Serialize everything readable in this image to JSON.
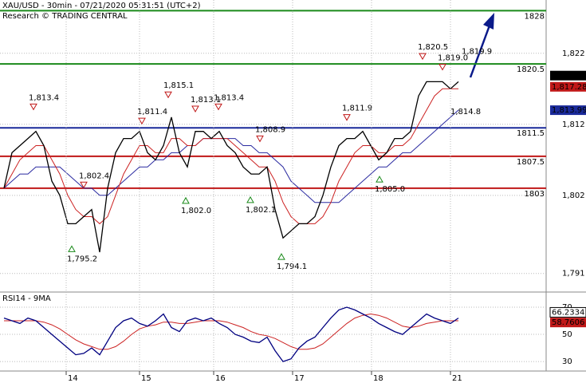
{
  "chart_data": [
    {
      "type": "price",
      "title": "XAU/USD - 30min - 07/21/2020 05:31:51 (UTC+2)",
      "subtitle": "Research © TRADING CENTRAL",
      "x": [
        0,
        1,
        2,
        3,
        4,
        5,
        6,
        7,
        8,
        9,
        10,
        11,
        12,
        13,
        14,
        15,
        16,
        17,
        18,
        19,
        20,
        21,
        22,
        23,
        24,
        25,
        26,
        27,
        28,
        29,
        30,
        31,
        32,
        33,
        34,
        35,
        36,
        37,
        38,
        39,
        40,
        41,
        42,
        43,
        44,
        45,
        46,
        47,
        48,
        49,
        50,
        51,
        52,
        53,
        54,
        55,
        56,
        57
      ],
      "series": [
        {
          "color": "#000000",
          "values": [
            1803,
            1808,
            1809,
            1810,
            1811,
            1809,
            1804,
            1802,
            1798,
            1798,
            1799,
            1800,
            1794,
            1803,
            1808,
            1810,
            1810,
            1811,
            1808,
            1807,
            1809,
            1813,
            1808,
            1806,
            1811,
            1811,
            1810,
            1811,
            1809,
            1808,
            1806,
            1805,
            1805,
            1806,
            1800,
            1796,
            1797,
            1798,
            1798,
            1799,
            1802,
            1806,
            1809,
            1810,
            1810,
            1811,
            1809,
            1807,
            1808,
            1810,
            1810,
            1811,
            1816,
            1818,
            1818,
            1818,
            1817,
            1818
          ]
        },
        {
          "color": "#cc2222",
          "values": [
            1803,
            1805,
            1807,
            1808,
            1809,
            1809,
            1807,
            1805,
            1802,
            1800,
            1799,
            1799,
            1798,
            1799,
            1802,
            1805,
            1807,
            1809,
            1809,
            1808,
            1808,
            1810,
            1810,
            1809,
            1809,
            1810,
            1810,
            1810,
            1810,
            1809,
            1808,
            1807,
            1806,
            1806,
            1804,
            1801,
            1799,
            1798,
            1798,
            1798,
            1799,
            1801,
            1804,
            1806,
            1808,
            1809,
            1809,
            1808,
            1808,
            1809,
            1809,
            1810,
            1812,
            1814,
            1816,
            1817,
            1817,
            1817
          ]
        },
        {
          "color": "#2a2aa0",
          "values": [
            1803,
            1804,
            1805,
            1805,
            1806,
            1806,
            1806,
            1806,
            1805,
            1804,
            1803,
            1803,
            1802,
            1802,
            1803,
            1804,
            1805,
            1806,
            1806,
            1807,
            1807,
            1808,
            1808,
            1809,
            1809,
            1810,
            1810,
            1810,
            1810,
            1810,
            1809,
            1809,
            1808,
            1808,
            1807,
            1806,
            1804,
            1803,
            1802,
            1801,
            1801,
            1801,
            1801,
            1802,
            1803,
            1804,
            1805,
            1806,
            1806,
            1807,
            1808,
            1808,
            1809,
            1810,
            1811,
            1812,
            1813,
            1814
          ]
        }
      ],
      "levels": [
        {
          "value": 1828,
          "color": "#1a8a1a"
        },
        {
          "value": 1820.5,
          "color": "#1a8a1a"
        },
        {
          "value": 1811.5,
          "color": "#1a2a9a"
        },
        {
          "value": 1807.5,
          "color": "#c01818"
        },
        {
          "value": 1803,
          "color": "#c01818"
        }
      ],
      "price_labels": [
        {
          "value": 1818.86,
          "label": "1,818.86",
          "color": "#000000"
        },
        {
          "value": 1817.28,
          "label": "1,817.28",
          "color": "#c01818"
        },
        {
          "value": 1813.99,
          "label": "1,813.99",
          "color": "#1a2a9a"
        }
      ],
      "annotations": [
        {
          "label": "1,813.4",
          "x": 3.7,
          "value": 1813.4,
          "kind": "high"
        },
        {
          "label": "1,795.2",
          "x": 8.5,
          "value": 1795.2,
          "kind": "low"
        },
        {
          "label": "1,802.4",
          "x": 10,
          "value": 1802.4,
          "kind": "high"
        },
        {
          "label": "1,811.4",
          "x": 17.3,
          "value": 1811.4,
          "kind": "high"
        },
        {
          "label": "1,815.1",
          "x": 20.6,
          "value": 1815.1,
          "kind": "high"
        },
        {
          "label": "1,802.0",
          "x": 22.8,
          "value": 1802.0,
          "kind": "low"
        },
        {
          "label": "1,813.1",
          "x": 24,
          "value": 1813.1,
          "kind": "high"
        },
        {
          "label": "1,813.4",
          "x": 26.9,
          "value": 1813.4,
          "kind": "high"
        },
        {
          "label": "1,802.1",
          "x": 30.9,
          "value": 1802.1,
          "kind": "low"
        },
        {
          "label": "1,808.9",
          "x": 32.1,
          "value": 1808.9,
          "kind": "high"
        },
        {
          "label": "1,794.1",
          "x": 34.8,
          "value": 1794.1,
          "kind": "low"
        },
        {
          "label": "1,811.9",
          "x": 43,
          "value": 1811.9,
          "kind": "high"
        },
        {
          "label": "1,805.0",
          "x": 47.1,
          "value": 1805.0,
          "kind": "low"
        },
        {
          "label": "1,820.5",
          "x": 52.5,
          "value": 1820.5,
          "kind": "high"
        },
        {
          "label": "1,819.0",
          "x": 55,
          "value": 1819.0,
          "kind": "high"
        },
        {
          "label": "1,819.9",
          "x": 58,
          "value": 1819.9,
          "kind": "high-text"
        },
        {
          "label": "1,814.8",
          "x": 56.6,
          "value": 1814.8,
          "kind": "text"
        }
      ],
      "xlim": [
        -0.5,
        68
      ],
      "ylim": [
        1788.5,
        1829.5
      ],
      "yticks": [
        {
          "value": 1822,
          "label": "1,822"
        },
        {
          "value": 1812,
          "label": "1,812"
        },
        {
          "value": 1802,
          "label": "1,802"
        },
        {
          "value": 1791,
          "label": "1,791"
        }
      ],
      "grid": true
    },
    {
      "type": "rsi",
      "title": "RSI14 - 9MA",
      "x": [
        0,
        1,
        2,
        3,
        4,
        5,
        6,
        7,
        8,
        9,
        10,
        11,
        12,
        13,
        14,
        15,
        16,
        17,
        18,
        19,
        20,
        21,
        22,
        23,
        24,
        25,
        26,
        27,
        28,
        29,
        30,
        31,
        32,
        33,
        34,
        35,
        36,
        37,
        38,
        39,
        40,
        41,
        42,
        43,
        44,
        45,
        46,
        47,
        48,
        49,
        50,
        51,
        52,
        53,
        54,
        55,
        56,
        57
      ],
      "series": [
        {
          "color": "#000080",
          "values": [
            62,
            60,
            58,
            62,
            60,
            55,
            50,
            45,
            40,
            35,
            36,
            40,
            35,
            45,
            55,
            60,
            62,
            58,
            56,
            60,
            65,
            55,
            52,
            60,
            62,
            60,
            62,
            58,
            55,
            50,
            48,
            45,
            44,
            48,
            38,
            30,
            32,
            40,
            45,
            48,
            55,
            62,
            68,
            70,
            68,
            65,
            62,
            58,
            55,
            52,
            50,
            55,
            60,
            65,
            62,
            60,
            58,
            62
          ]
        },
        {
          "color": "#cc2222",
          "values": [
            60,
            60,
            60,
            60,
            60,
            59,
            57,
            54,
            50,
            46,
            43,
            41,
            39,
            39,
            41,
            45,
            50,
            54,
            56,
            57,
            59,
            59,
            58,
            58,
            59,
            60,
            60,
            60,
            59,
            57,
            55,
            52,
            50,
            49,
            47,
            44,
            41,
            39,
            39,
            40,
            43,
            48,
            53,
            58,
            62,
            64,
            65,
            64,
            62,
            59,
            56,
            55,
            56,
            58,
            59,
            60,
            60,
            60
          ]
        }
      ],
      "value_labels": [
        {
          "value": 66.2334,
          "label": "66.2334",
          "color": "#ffffff"
        },
        {
          "value": 58.7606,
          "label": "58.7606",
          "color": "#c01818"
        }
      ],
      "xlim": [
        -0.5,
        68
      ],
      "ylim": [
        23,
        80
      ],
      "yticks": [
        70,
        50,
        30
      ],
      "xticks": [
        {
          "value": 7.8,
          "label": "14"
        },
        {
          "value": 17,
          "label": "15"
        },
        {
          "value": 26.3,
          "label": "16"
        },
        {
          "value": 36.2,
          "label": "17"
        },
        {
          "value": 46.1,
          "label": "18"
        },
        {
          "value": 56,
          "label": "21"
        }
      ],
      "grid": true
    }
  ]
}
